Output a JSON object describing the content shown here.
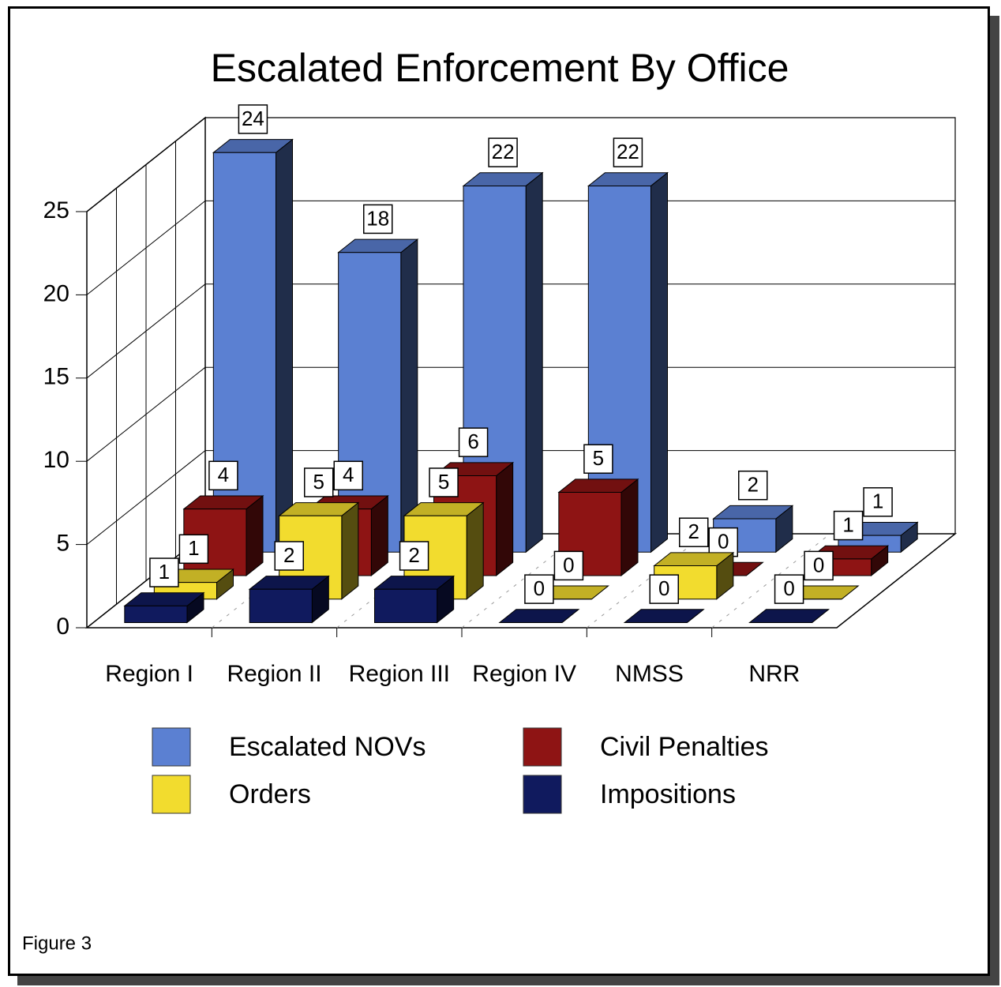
{
  "chart_data": {
    "type": "bar3d",
    "title": "Escalated Enforcement By Office",
    "categories": [
      "Region I",
      "Region II",
      "Region III",
      "Region IV",
      "NMSS",
      "NRR"
    ],
    "series": [
      {
        "name": "Escalated NOVs",
        "color": "#5b80d2",
        "values": [
          24,
          18,
          22,
          22,
          2,
          1
        ]
      },
      {
        "name": "Civil Penalties",
        "color": "#8e1414",
        "values": [
          4,
          4,
          6,
          5,
          0,
          1
        ]
      },
      {
        "name": "Orders",
        "color": "#f2dc2e",
        "values": [
          1,
          5,
          5,
          0,
          2,
          0
        ]
      },
      {
        "name": "Impositions",
        "color": "#101a5e",
        "values": [
          1,
          2,
          2,
          0,
          0,
          0
        ]
      }
    ],
    "ylim": [
      0,
      25
    ],
    "yticks": [
      0,
      5,
      10,
      15,
      20,
      25
    ],
    "grid": true,
    "footnote": "Figure 3"
  }
}
